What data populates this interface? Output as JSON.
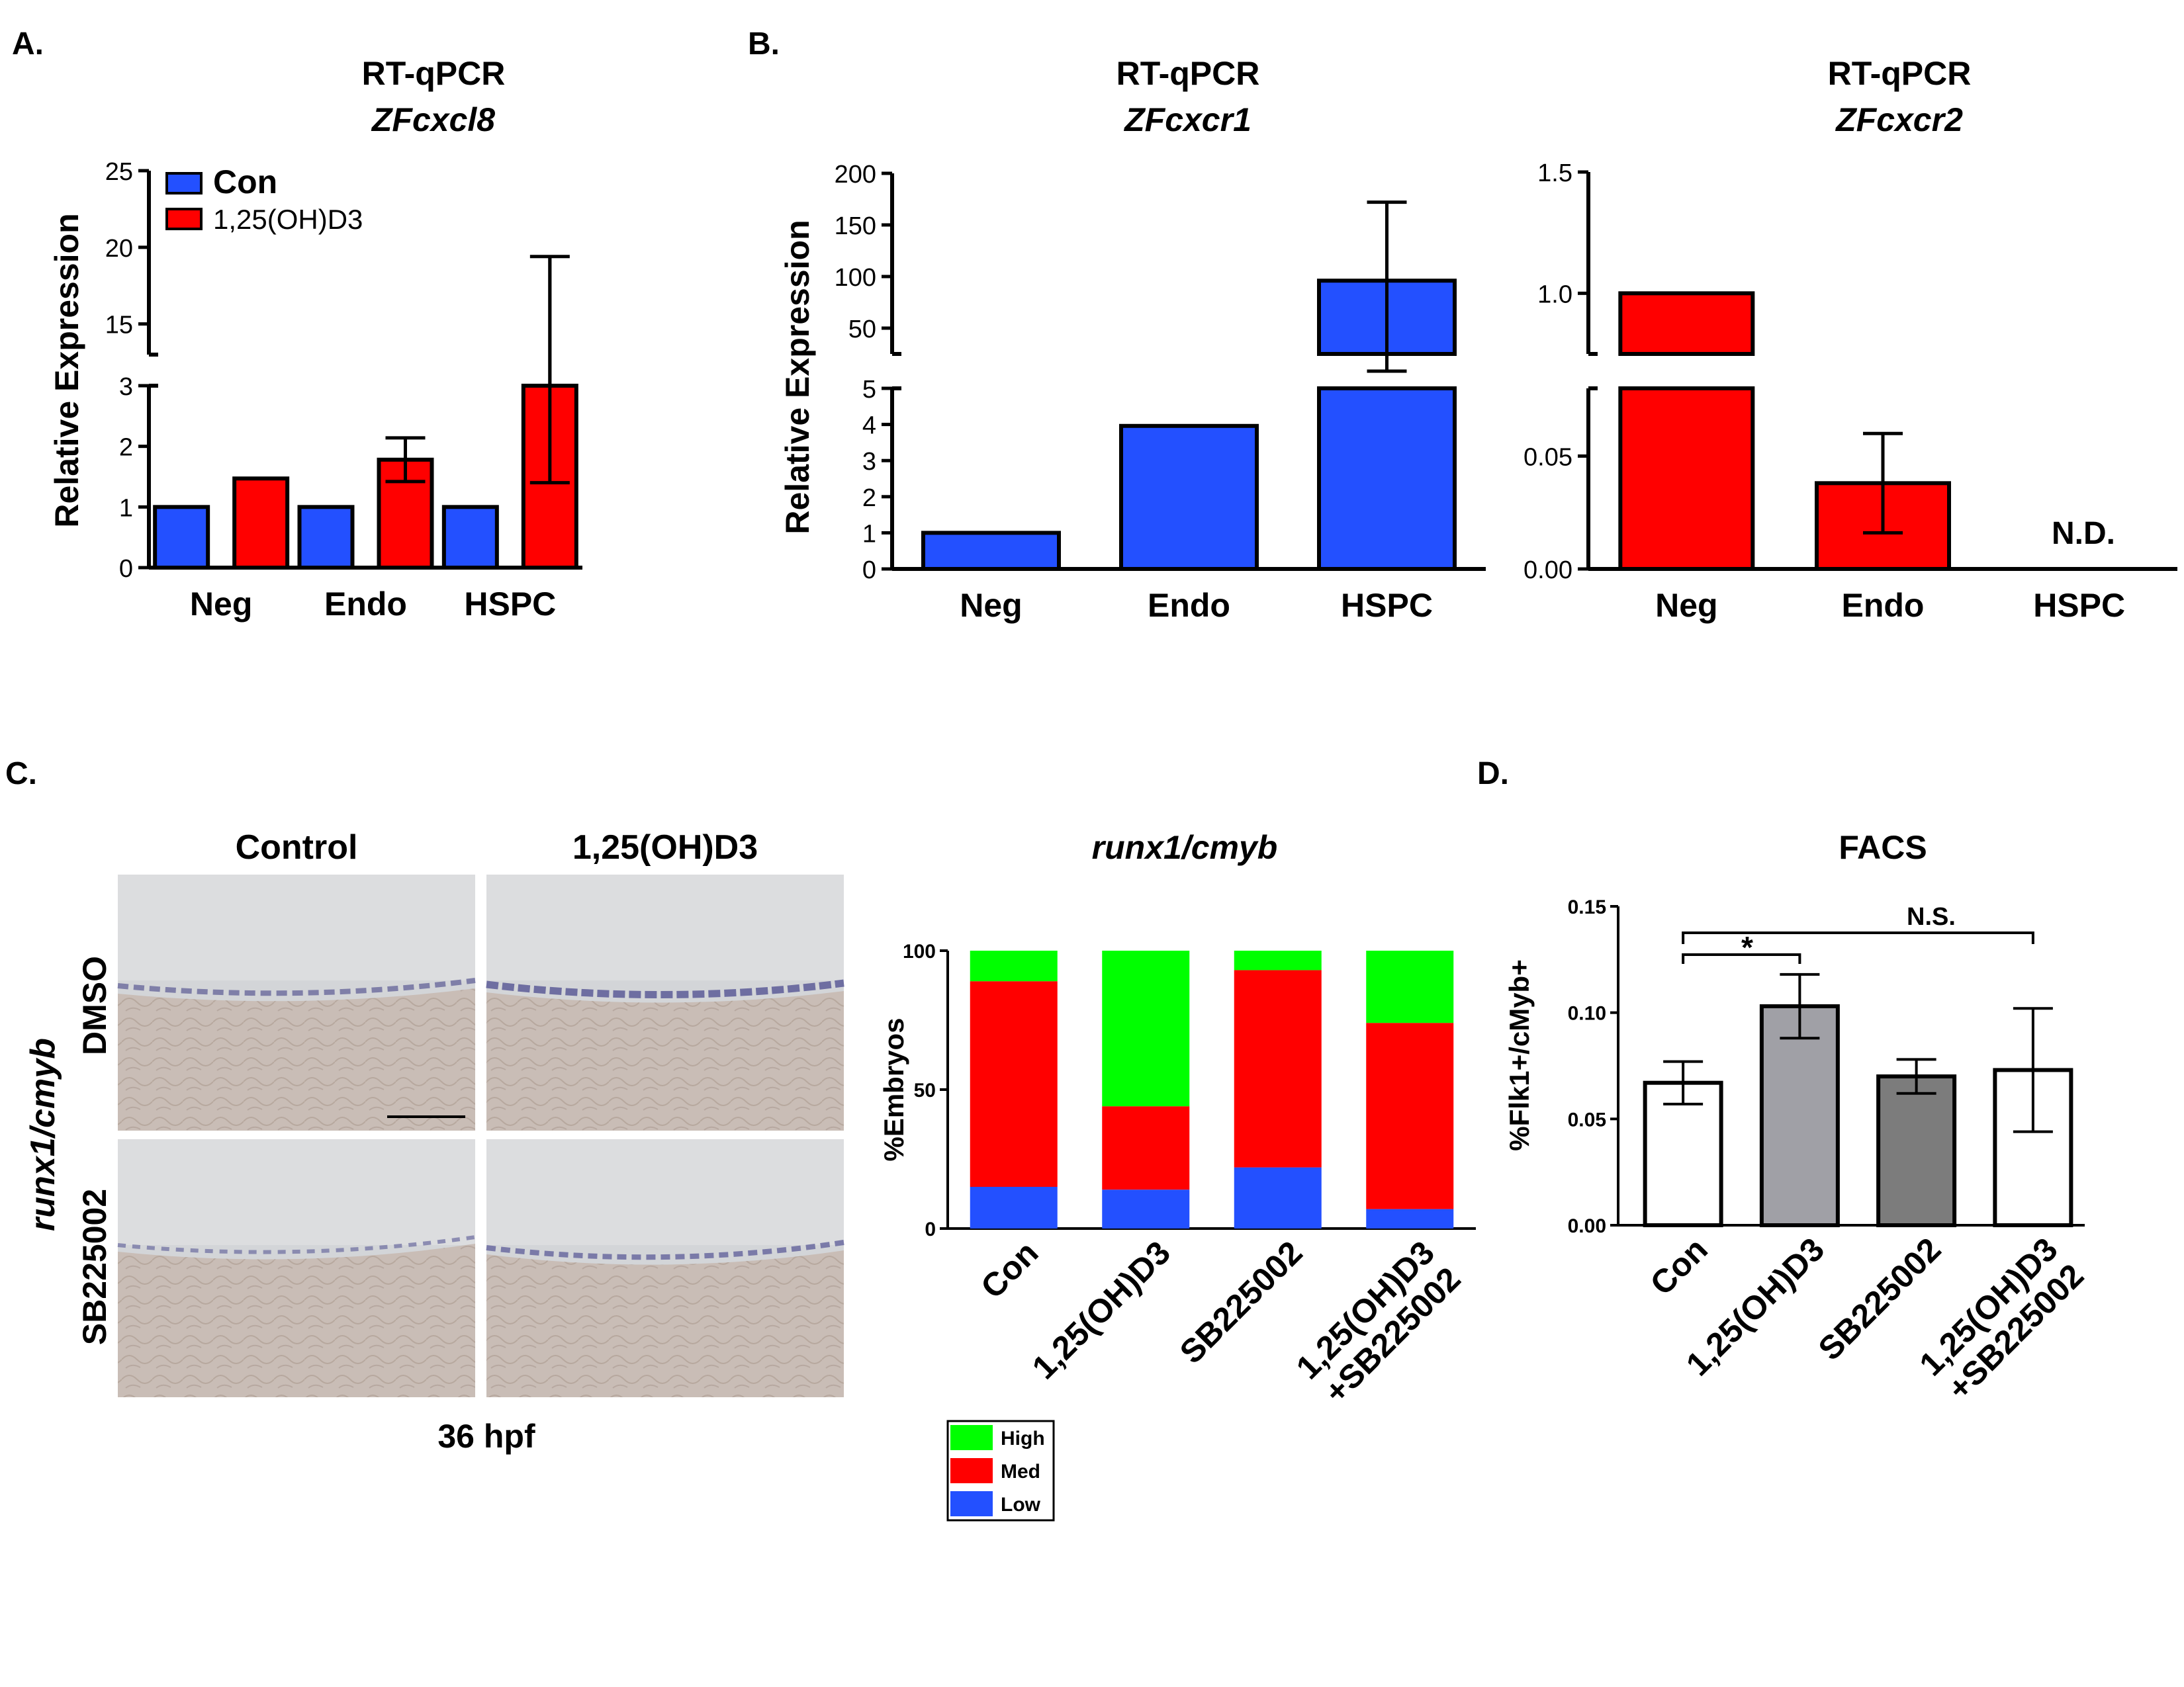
{
  "panels": {
    "A": {
      "letter": "A.",
      "title": "RT-qPCR",
      "subtitle": "ZFcxcl8"
    },
    "B": {
      "letter": "B.",
      "title1": "RT-qPCR",
      "subtitle1": "ZFcxcr1",
      "title2": "RT-qPCR",
      "subtitle2": "ZFcxcr2",
      "nd_label": "N.D."
    },
    "C": {
      "letter": "C.",
      "image_col_labels": [
        "Control",
        "1,25(OH)D3"
      ],
      "image_row_labels": [
        "DMSO",
        "SB225002"
      ],
      "image_side_label": "runx1/cmyb",
      "image_caption": "36 hpf",
      "chart_title": "runx1/cmyb"
    },
    "D": {
      "letter": "D.",
      "title": "FACS",
      "sig_star": "*",
      "sig_ns": "N.S."
    }
  },
  "colors": {
    "blue": "#2350ff",
    "red": "#ff0000",
    "green": "#00ff00",
    "grey_light": "#a0a0a6",
    "grey_dark": "#7c7c7c",
    "white": "#ffffff"
  },
  "chart_data": [
    {
      "id": "A",
      "type": "bar",
      "categories": [
        "Neg",
        "Endo",
        "HSPC"
      ],
      "series": [
        {
          "name": "Con",
          "values": [
            1.0,
            1.0,
            1.0
          ],
          "color": "#2350ff"
        },
        {
          "name": "1,25(OH)D3",
          "values": [
            1.47,
            1.78,
            10.4
          ],
          "errors": [
            0,
            0.36,
            9.0
          ],
          "color": "#ff0000"
        }
      ],
      "ylabel": "Relative Expression",
      "axis_break": true,
      "ylim_lower": [
        0,
        3
      ],
      "ylim_upper": [
        13,
        25
      ],
      "yticks_lower": [
        "0",
        "1",
        "2",
        "3"
      ],
      "yticks_upper": [
        "15",
        "20",
        "25"
      ],
      "legend": "top-left"
    },
    {
      "id": "B1",
      "type": "bar",
      "categories": [
        "Neg",
        "Endo",
        "HSPC"
      ],
      "series": [
        {
          "name": "",
          "values": [
            1.0,
            3.96,
            96
          ],
          "errors": [
            0,
            0,
            76
          ],
          "color": "#2350ff"
        }
      ],
      "ylabel": "Relative Expression",
      "axis_break": true,
      "ylim_lower": [
        0,
        5
      ],
      "ylim_upper": [
        25,
        200
      ],
      "yticks_lower": [
        "0",
        "1",
        "2",
        "3",
        "4",
        "5"
      ],
      "yticks_upper": [
        "50",
        "100",
        "150",
        "200"
      ]
    },
    {
      "id": "B2",
      "type": "bar",
      "categories": [
        "Neg",
        "Endo",
        "HSPC"
      ],
      "series": [
        {
          "name": "",
          "values": [
            1.0,
            0.038,
            null
          ],
          "errors": [
            0,
            0.022,
            null
          ],
          "color": "#ff0000"
        }
      ],
      "annotation": "N.D.",
      "axis_break": true,
      "ylim_lower": [
        0,
        0.08
      ],
      "ylim_upper": [
        0.75,
        1.5
      ],
      "yticks_lower": [
        "0.00",
        "0.05"
      ],
      "yticks_upper": [
        "1.0",
        "1.5"
      ]
    },
    {
      "id": "C",
      "type": "bar",
      "stacked": true,
      "title": "runx1/cmyb",
      "categories": [
        "Con",
        "1,25(OH)D3",
        "SB225002",
        "1,25(OH)D3 +SB225002"
      ],
      "series": [
        {
          "name": "Low",
          "values": [
            15,
            14,
            22,
            7
          ],
          "color": "#2350ff"
        },
        {
          "name": "Med",
          "values": [
            74,
            30,
            71,
            67
          ],
          "color": "#ff0000"
        },
        {
          "name": "High",
          "values": [
            11,
            56,
            7,
            26
          ],
          "color": "#00ff00"
        }
      ],
      "ylabel": "%Embryos",
      "ylim": [
        0,
        100
      ],
      "yticks": [
        "0",
        "50",
        "100"
      ],
      "legend": "bottom"
    },
    {
      "id": "D",
      "type": "bar",
      "title": "FACS",
      "categories": [
        "Con",
        "1,25(OH)D3",
        "SB225002",
        "1,25(OH)D3 +SB225002"
      ],
      "values": [
        0.067,
        0.103,
        0.07,
        0.073
      ],
      "errors": [
        0.01,
        0.015,
        0.008,
        0.029
      ],
      "colors": [
        "#ffffff",
        "#a0a0a6",
        "#7c7c7c",
        "#ffffff"
      ],
      "ylabel": "%Flk1+/cMyb+",
      "ylim": [
        0,
        0.15
      ],
      "yticks": [
        "0.00",
        "0.05",
        "0.10",
        "0.15"
      ],
      "significance": [
        {
          "from": "Con",
          "to": "1,25(OH)D3",
          "label": "*"
        },
        {
          "from": "Con",
          "to": "1,25(OH)D3 +SB225002",
          "label": "N.S."
        }
      ]
    }
  ]
}
